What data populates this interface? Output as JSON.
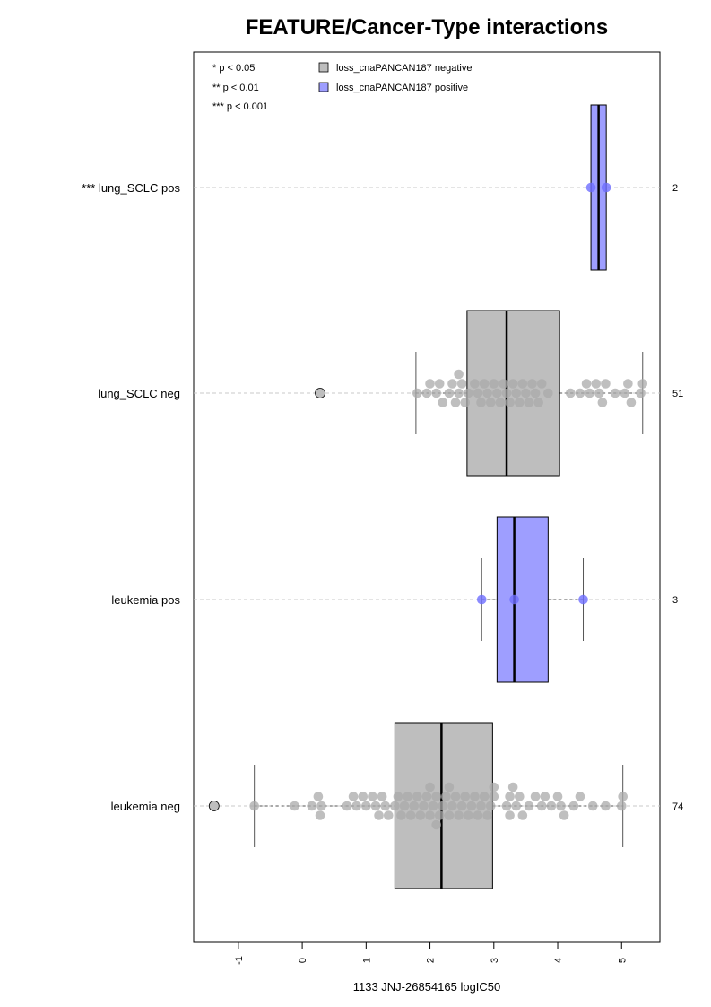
{
  "chart_data": {
    "type": "box",
    "title": "FEATURE/Cancer-Type interactions",
    "xlabel": "1133 JNJ-26854165 logIC50",
    "xlim": [
      -1.7,
      5.6
    ],
    "xticks": [
      "-1",
      "0",
      "1",
      "2",
      "3",
      "4",
      "5"
    ],
    "legend_position": "top-left",
    "legend": {
      "pvalues": [
        "* p < 0.05",
        "** p < 0.01",
        "*** p < 0.001"
      ],
      "series": [
        {
          "name": "loss_cnaPANCAN187 negative",
          "color": "#bebebe"
        },
        {
          "name": "loss_cnaPANCAN187 positive",
          "color": "#9e9eff"
        }
      ]
    },
    "groups": [
      {
        "label": "*** lung_SCLC pos",
        "n": "2",
        "series": "positive",
        "q1": 4.52,
        "median": 4.64,
        "q3": 4.76,
        "whisker_low": 4.52,
        "whisker_high": 4.76,
        "outliers": [],
        "points": [
          4.52,
          4.76
        ]
      },
      {
        "label": "lung_SCLC neg",
        "n": "51",
        "series": "negative",
        "q1": 2.58,
        "median": 3.2,
        "q3": 4.03,
        "whisker_low": 1.78,
        "whisker_high": 5.33,
        "outliers": [
          0.28
        ],
        "points": [
          1.8,
          1.95,
          2.0,
          2.1,
          2.15,
          2.2,
          2.3,
          2.35,
          2.4,
          2.45,
          2.45,
          2.5,
          2.55,
          2.6,
          2.7,
          2.75,
          2.8,
          2.85,
          2.9,
          2.95,
          3.0,
          3.05,
          3.1,
          3.15,
          3.2,
          3.25,
          3.3,
          3.35,
          3.4,
          3.45,
          3.5,
          3.55,
          3.6,
          3.65,
          3.7,
          3.75,
          3.85,
          4.2,
          4.35,
          4.45,
          4.5,
          4.6,
          4.65,
          4.7,
          4.75,
          4.9,
          5.05,
          5.1,
          5.15,
          5.3,
          5.33
        ]
      },
      {
        "label": "leukemia pos",
        "n": "3",
        "series": "positive",
        "q1": 3.05,
        "median": 3.32,
        "q3": 3.85,
        "whisker_low": 2.81,
        "whisker_high": 4.4,
        "outliers": [],
        "points": [
          2.81,
          3.32,
          4.4
        ]
      },
      {
        "label": "leukemia neg",
        "n": "74",
        "series": "negative",
        "q1": 1.45,
        "median": 2.18,
        "q3": 2.98,
        "whisker_low": -0.75,
        "whisker_high": 5.02,
        "outliers": [
          -1.38
        ],
        "points": [
          -0.75,
          -0.12,
          0.15,
          0.25,
          0.28,
          0.3,
          0.7,
          0.8,
          0.85,
          0.95,
          1.0,
          1.1,
          1.15,
          1.2,
          1.25,
          1.3,
          1.35,
          1.45,
          1.5,
          1.55,
          1.6,
          1.65,
          1.7,
          1.75,
          1.8,
          1.85,
          1.9,
          1.95,
          2.0,
          2.0,
          2.05,
          2.1,
          2.1,
          2.15,
          2.2,
          2.25,
          2.3,
          2.3,
          2.35,
          2.4,
          2.45,
          2.5,
          2.55,
          2.6,
          2.65,
          2.7,
          2.75,
          2.8,
          2.85,
          2.9,
          2.95,
          3.0,
          3.0,
          3.2,
          3.25,
          3.25,
          3.3,
          3.35,
          3.4,
          3.45,
          3.55,
          3.65,
          3.75,
          3.8,
          3.9,
          4.0,
          4.05,
          4.1,
          4.25,
          4.35,
          4.55,
          4.75,
          5.0,
          5.02
        ]
      }
    ]
  }
}
